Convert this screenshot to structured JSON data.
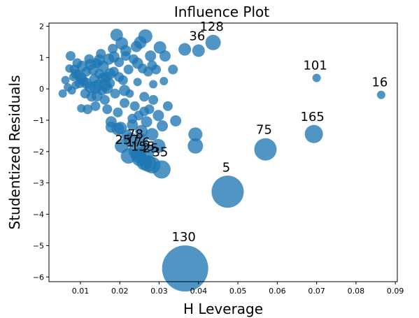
{
  "chart_data": {
    "type": "scatter",
    "title": "Influence Plot",
    "xlabel": "H Leverage",
    "ylabel": "Studentized Residuals",
    "xlim": [
      0.002,
      0.0905
    ],
    "ylim": [
      -6.15,
      2.1
    ],
    "x_ticks": [
      "0.01",
      "0.02",
      "0.03",
      "0.04",
      "0.05",
      "0.06",
      "0.07",
      "0.08",
      "0.09"
    ],
    "x_tick_values": [
      0.01,
      0.02,
      0.03,
      0.04,
      0.05,
      0.06,
      0.07,
      0.08,
      0.09
    ],
    "y_ticks": [
      "2",
      "1",
      "0",
      "−1",
      "−2",
      "−3",
      "−4",
      "−5",
      "−6"
    ],
    "y_tick_values": [
      2,
      1,
      0,
      -1,
      -2,
      -3,
      -4,
      -5,
      -6
    ],
    "marker_color": "#1f77b4",
    "grid": false,
    "marker_size_meaning": "influence",
    "labeled_points": [
      {
        "label": "128",
        "x": 0.0437,
        "y": 1.48,
        "size": 11
      },
      {
        "label": "36",
        "x": 0.04,
        "y": 1.22,
        "size": 9
      },
      {
        "label": "101",
        "x": 0.07,
        "y": 0.35,
        "size": 6
      },
      {
        "label": "16",
        "x": 0.0864,
        "y": -0.19,
        "size": 6
      },
      {
        "label": "165",
        "x": 0.0693,
        "y": -1.44,
        "size": 13
      },
      {
        "label": "75",
        "x": 0.057,
        "y": -1.93,
        "size": 16
      },
      {
        "label": "5",
        "x": 0.0474,
        "y": -3.28,
        "size": 23
      },
      {
        "label": "130",
        "x": 0.0366,
        "y": -5.73,
        "size": 33
      },
      {
        "label": "78",
        "x": 0.0243,
        "y": -1.98,
        "size": 12
      },
      {
        "label": "257",
        "x": 0.0222,
        "y": -2.14,
        "size": 11
      },
      {
        "label": "176",
        "x": 0.025,
        "y": -2.22,
        "size": 11
      },
      {
        "label": "155",
        "x": 0.0262,
        "y": -2.35,
        "size": 11
      },
      {
        "label": "25",
        "x": 0.0282,
        "y": -2.43,
        "size": 12
      },
      {
        "label": "35",
        "x": 0.0306,
        "y": -2.57,
        "size": 13
      }
    ],
    "points": [
      {
        "x": 0.0055,
        "y": -0.15,
        "size": 6
      },
      {
        "x": 0.0062,
        "y": 0.28,
        "size": 6
      },
      {
        "x": 0.0068,
        "y": 0.05,
        "size": 6
      },
      {
        "x": 0.0072,
        "y": 0.65,
        "size": 6
      },
      {
        "x": 0.0075,
        "y": 1.05,
        "size": 7
      },
      {
        "x": 0.0078,
        "y": -0.05,
        "size": 6
      },
      {
        "x": 0.0082,
        "y": 0.38,
        "size": 6
      },
      {
        "x": 0.0085,
        "y": 0.62,
        "size": 7
      },
      {
        "x": 0.0088,
        "y": 0.12,
        "size": 6
      },
      {
        "x": 0.0092,
        "y": 0.82,
        "size": 7
      },
      {
        "x": 0.0095,
        "y": 0.45,
        "size": 7
      },
      {
        "x": 0.0098,
        "y": 0.18,
        "size": 7
      },
      {
        "x": 0.0102,
        "y": -0.62,
        "size": 6
      },
      {
        "x": 0.0105,
        "y": 0.72,
        "size": 8
      },
      {
        "x": 0.0108,
        "y": 0.25,
        "size": 7
      },
      {
        "x": 0.0112,
        "y": -0.15,
        "size": 7
      },
      {
        "x": 0.0115,
        "y": 0.55,
        "size": 7
      },
      {
        "x": 0.0118,
        "y": -0.65,
        "size": 7
      },
      {
        "x": 0.0122,
        "y": 0.95,
        "size": 7
      },
      {
        "x": 0.0125,
        "y": 0.05,
        "size": 8
      },
      {
        "x": 0.0128,
        "y": -0.25,
        "size": 7
      },
      {
        "x": 0.0132,
        "y": 0.62,
        "size": 8
      },
      {
        "x": 0.0135,
        "y": 0.32,
        "size": 7
      },
      {
        "x": 0.0138,
        "y": -0.55,
        "size": 7
      },
      {
        "x": 0.0142,
        "y": 0.82,
        "size": 7
      },
      {
        "x": 0.0145,
        "y": 0.12,
        "size": 8
      },
      {
        "x": 0.0148,
        "y": 0.48,
        "size": 7
      },
      {
        "x": 0.0152,
        "y": 1.12,
        "size": 7
      },
      {
        "x": 0.0155,
        "y": -0.05,
        "size": 7
      },
      {
        "x": 0.0158,
        "y": 0.72,
        "size": 8
      },
      {
        "x": 0.0162,
        "y": -0.35,
        "size": 7
      },
      {
        "x": 0.0165,
        "y": 0.38,
        "size": 8
      },
      {
        "x": 0.0168,
        "y": -0.65,
        "size": 7
      },
      {
        "x": 0.0172,
        "y": 0.95,
        "size": 8
      },
      {
        "x": 0.0175,
        "y": 0.18,
        "size": 7
      },
      {
        "x": 0.0178,
        "y": -1.05,
        "size": 8
      },
      {
        "x": 0.0182,
        "y": 1.28,
        "size": 7
      },
      {
        "x": 0.0185,
        "y": 0.55,
        "size": 7
      },
      {
        "x": 0.0188,
        "y": -0.15,
        "size": 7
      },
      {
        "x": 0.0192,
        "y": 1.72,
        "size": 9
      },
      {
        "x": 0.0195,
        "y": -0.75,
        "size": 7
      },
      {
        "x": 0.0198,
        "y": 0.85,
        "size": 7
      },
      {
        "x": 0.0202,
        "y": -1.25,
        "size": 9
      },
      {
        "x": 0.0205,
        "y": 1.45,
        "size": 9
      },
      {
        "x": 0.0208,
        "y": 0.28,
        "size": 7
      },
      {
        "x": 0.0212,
        "y": -0.45,
        "size": 7
      },
      {
        "x": 0.0215,
        "y": 1.05,
        "size": 7
      },
      {
        "x": 0.0218,
        "y": -1.48,
        "size": 8
      },
      {
        "x": 0.0222,
        "y": 0.62,
        "size": 7
      },
      {
        "x": 0.0225,
        "y": -0.15,
        "size": 6
      },
      {
        "x": 0.0232,
        "y": -1.15,
        "size": 8
      },
      {
        "x": 0.0235,
        "y": 0.95,
        "size": 7
      },
      {
        "x": 0.0238,
        "y": -0.55,
        "size": 7
      },
      {
        "x": 0.0242,
        "y": 1.35,
        "size": 8
      },
      {
        "x": 0.0245,
        "y": 0.22,
        "size": 6
      },
      {
        "x": 0.0248,
        "y": -0.85,
        "size": 7
      },
      {
        "x": 0.0252,
        "y": 1.48,
        "size": 9
      },
      {
        "x": 0.0255,
        "y": -1.35,
        "size": 9
      },
      {
        "x": 0.0258,
        "y": 0.65,
        "size": 7
      },
      {
        "x": 0.0262,
        "y": -0.25,
        "size": 7
      },
      {
        "x": 0.0265,
        "y": 1.68,
        "size": 10
      },
      {
        "x": 0.0268,
        "y": -1.05,
        "size": 8
      },
      {
        "x": 0.0272,
        "y": 0.55,
        "size": 7
      },
      {
        "x": 0.0275,
        "y": -0.65,
        "size": 7
      },
      {
        "x": 0.0278,
        "y": 1.05,
        "size": 8
      },
      {
        "x": 0.0282,
        "y": -1.45,
        "size": 9
      },
      {
        "x": 0.0285,
        "y": 0.15,
        "size": 6
      },
      {
        "x": 0.0292,
        "y": 0.62,
        "size": 7
      },
      {
        "x": 0.0298,
        "y": -0.85,
        "size": 8
      },
      {
        "x": 0.0302,
        "y": 1.32,
        "size": 9
      },
      {
        "x": 0.0308,
        "y": -1.18,
        "size": 8
      },
      {
        "x": 0.0315,
        "y": 1.05,
        "size": 8
      },
      {
        "x": 0.0322,
        "y": -0.55,
        "size": 7
      },
      {
        "x": 0.0335,
        "y": 0.62,
        "size": 7
      },
      {
        "x": 0.0342,
        "y": -1.02,
        "size": 8
      },
      {
        "x": 0.0365,
        "y": 1.26,
        "size": 9
      },
      {
        "x": 0.0392,
        "y": -1.45,
        "size": 10
      },
      {
        "x": 0.0392,
        "y": -1.82,
        "size": 11
      },
      {
        "x": 0.0102,
        "y": 0.35,
        "size": 8
      },
      {
        "x": 0.0138,
        "y": 0.05,
        "size": 9
      },
      {
        "x": 0.0162,
        "y": 0.12,
        "size": 9
      },
      {
        "x": 0.0195,
        "y": -1.28,
        "size": 9
      },
      {
        "x": 0.0205,
        "y": -1.82,
        "size": 10
      },
      {
        "x": 0.0228,
        "y": -1.62,
        "size": 10
      },
      {
        "x": 0.0248,
        "y": -2.12,
        "size": 11
      },
      {
        "x": 0.0268,
        "y": -2.02,
        "size": 11
      },
      {
        "x": 0.0272,
        "y": -2.38,
        "size": 12
      },
      {
        "x": 0.0298,
        "y": -1.82,
        "size": 10
      },
      {
        "x": 0.0125,
        "y": 0.78,
        "size": 8
      },
      {
        "x": 0.0148,
        "y": 0.92,
        "size": 8
      },
      {
        "x": 0.0175,
        "y": 0.48,
        "size": 8
      },
      {
        "x": 0.0185,
        "y": 1.02,
        "size": 8
      },
      {
        "x": 0.0215,
        "y": 1.22,
        "size": 8
      },
      {
        "x": 0.0245,
        "y": 0.82,
        "size": 8
      },
      {
        "x": 0.0282,
        "y": 0.75,
        "size": 7
      },
      {
        "x": 0.0255,
        "y": -1.62,
        "size": 9
      },
      {
        "x": 0.0232,
        "y": -0.95,
        "size": 7
      },
      {
        "x": 0.0178,
        "y": -1.22,
        "size": 8
      },
      {
        "x": 0.0168,
        "y": 0.02,
        "size": 8
      },
      {
        "x": 0.0142,
        "y": -0.22,
        "size": 8
      },
      {
        "x": 0.0115,
        "y": 0.18,
        "size": 8
      },
      {
        "x": 0.0088,
        "y": 0.48,
        "size": 7
      },
      {
        "x": 0.0312,
        "y": 0.25,
        "size": 6
      },
      {
        "x": 0.0285,
        "y": -0.35,
        "size": 7
      },
      {
        "x": 0.0262,
        "y": -0.72,
        "size": 7
      },
      {
        "x": 0.0212,
        "y": -0.05,
        "size": 8
      },
      {
        "x": 0.0198,
        "y": 0.38,
        "size": 7
      },
      {
        "x": 0.0158,
        "y": 0.35,
        "size": 8
      }
    ]
  }
}
